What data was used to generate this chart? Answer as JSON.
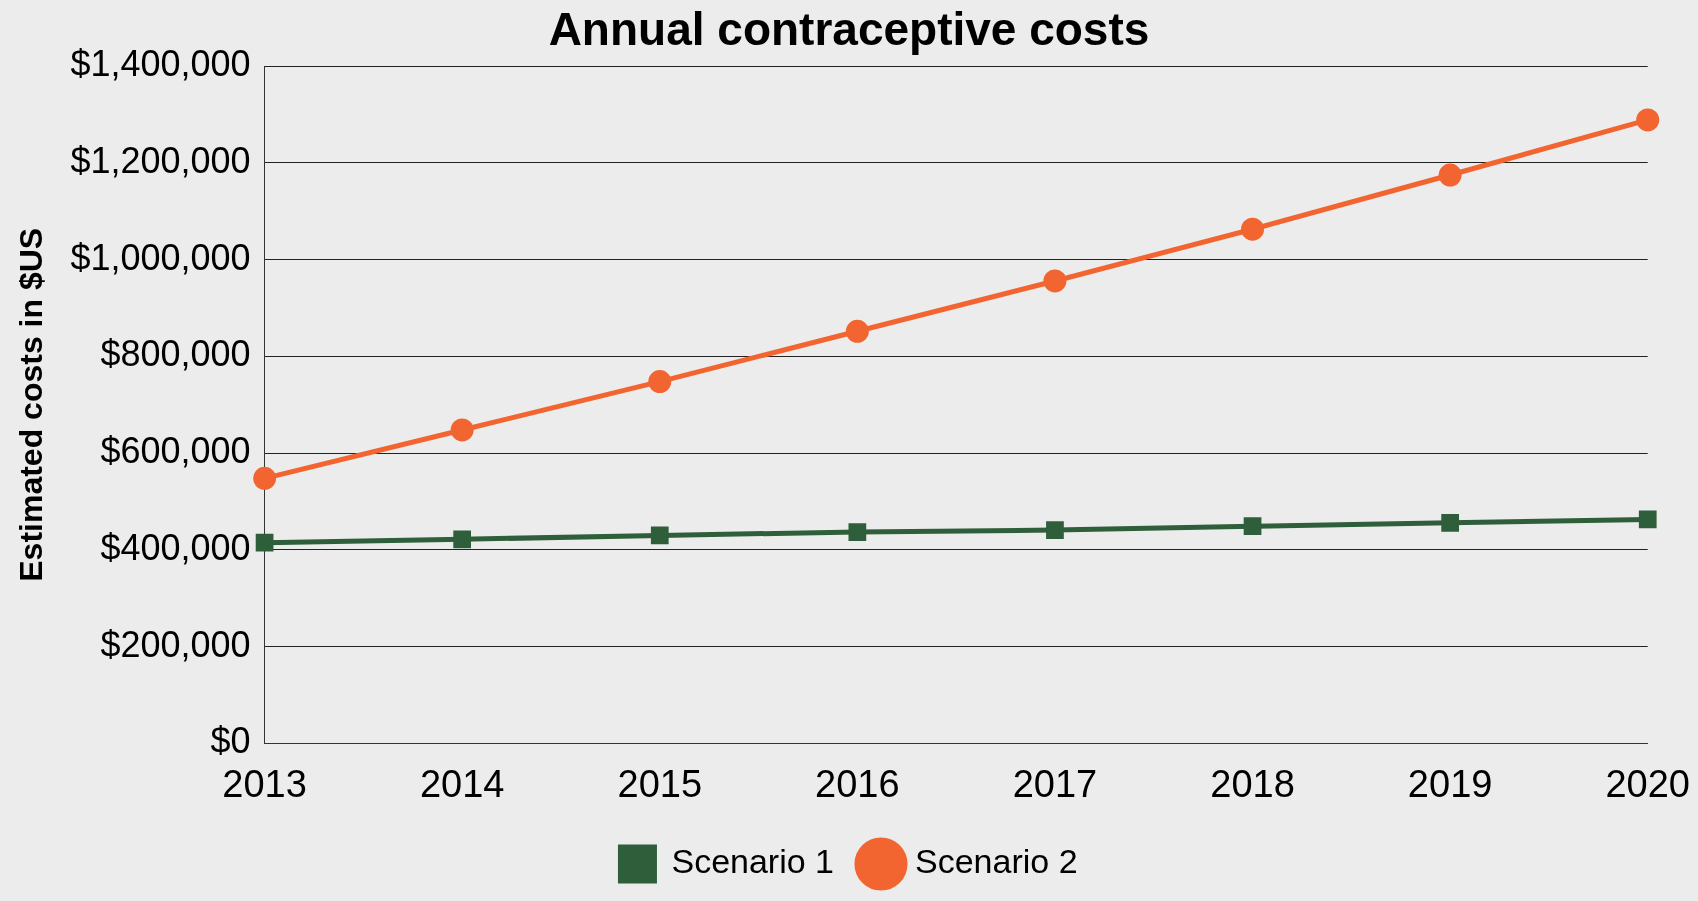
{
  "chart_data": {
    "type": "line",
    "title": "Annual contraceptive costs",
    "ylabel": "Estimated costs in $US",
    "categories": [
      "2013",
      "2014",
      "2015",
      "2016",
      "2017",
      "2018",
      "2019",
      "2020"
    ],
    "series": [
      {
        "name": "Scenario 1",
        "color": "#2e5e3a",
        "marker": "square",
        "values": [
          415000,
          422000,
          430000,
          437000,
          441000,
          449000,
          456000,
          463000
        ]
      },
      {
        "name": "Scenario 2",
        "color": "#f26530",
        "marker": "circle",
        "values": [
          548000,
          648000,
          748000,
          852000,
          956000,
          1063000,
          1175000,
          1289000
        ]
      }
    ],
    "ylim": [
      0,
      1400000
    ],
    "yticks": [
      {
        "value": 0,
        "label": "$0"
      },
      {
        "value": 200000,
        "label": "$200,000"
      },
      {
        "value": 400000,
        "label": "$400,000"
      },
      {
        "value": 600000,
        "label": "$600,000"
      },
      {
        "value": 800000,
        "label": "$800,000"
      },
      {
        "value": 1000000,
        "label": "$1,000,000"
      },
      {
        "value": 1200000,
        "label": "$1,200,000"
      },
      {
        "value": 1400000,
        "label": "$1,400,000"
      }
    ],
    "grid": "y",
    "legend": "bottom"
  }
}
